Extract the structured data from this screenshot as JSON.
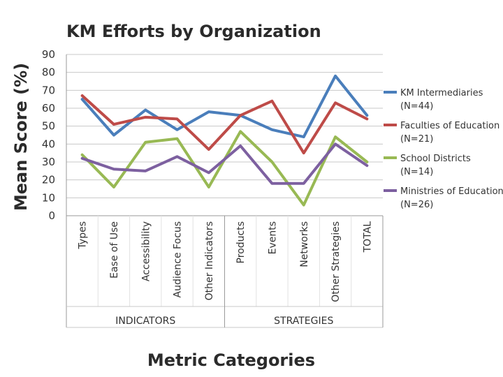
{
  "chart_data": {
    "type": "line",
    "title": "KM Efforts by Organization",
    "ylabel": "Mean Score (%)",
    "xlabel": "Metric Categories",
    "ylim": [
      0,
      90
    ],
    "yticks": [
      "0",
      "10",
      "20",
      "30",
      "40",
      "50",
      "60",
      "70",
      "80",
      "90"
    ],
    "grid": true,
    "legend_position": "right",
    "categories": [
      "Types",
      "Ease of Use",
      "Accessibility",
      "Audience Focus",
      "Other Indicators",
      "Products",
      "Events",
      "Networks",
      "Other Strategies",
      "TOTAL"
    ],
    "groups": [
      {
        "label": "INDICATORS",
        "span": [
          0,
          4
        ]
      },
      {
        "label": "STRATEGIES",
        "span": [
          5,
          9
        ]
      }
    ],
    "series": [
      {
        "name": "KM Intermediaries",
        "n": "(N=44)",
        "color": "#4a7ebb",
        "values": [
          65,
          45,
          59,
          48,
          58,
          56,
          48,
          44,
          78,
          56
        ]
      },
      {
        "name": "Faculties of Education",
        "n": "(N=21)",
        "color": "#be4b48",
        "values": [
          67,
          51,
          55,
          54,
          37,
          56,
          64,
          35,
          63,
          54
        ]
      },
      {
        "name": "School Districts",
        "n": "(N=14)",
        "color": "#98b954",
        "values": [
          34,
          16,
          41,
          43,
          16,
          47,
          30,
          6,
          44,
          30
        ]
      },
      {
        "name": "Ministries of Education",
        "n": "(N=26)",
        "color": "#7d60a0",
        "values": [
          32,
          26,
          25,
          33,
          24,
          39,
          18,
          18,
          40,
          28
        ]
      }
    ]
  }
}
